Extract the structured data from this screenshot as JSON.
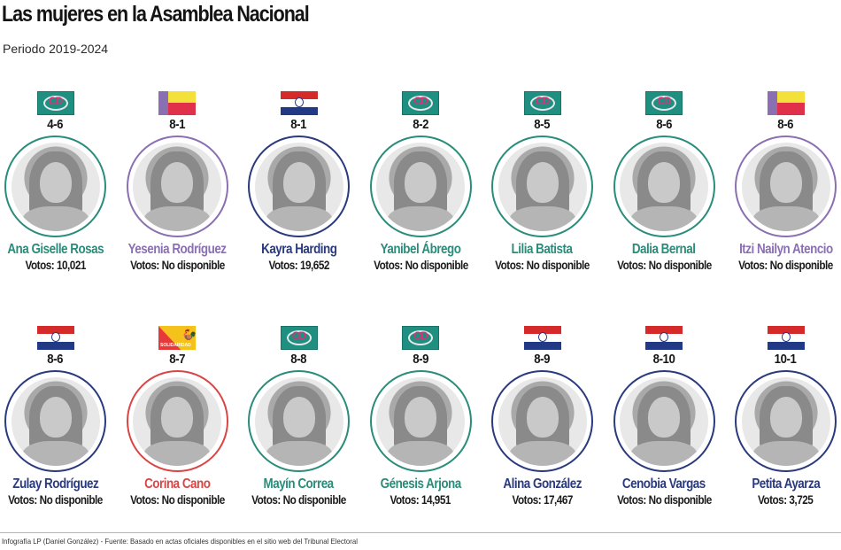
{
  "header": {
    "title": "Las mujeres en la Asamblea Nacional",
    "subtitle": "Periodo 2019-2024"
  },
  "parties": {
    "CD": {
      "label": "CD",
      "color": "#2a8c7a",
      "logo": "cd-logo-icon"
    },
    "MOLIRENA": {
      "label": "",
      "color": "#8b6fb3",
      "logo": "molirena-logo-icon"
    },
    "PRD": {
      "label": "",
      "color": "#223a86",
      "logo": "prd-logo-icon"
    },
    "SOLIDARIDAD": {
      "label": "SOLIDARIDAD",
      "color": "#d94040",
      "logo": "solidaridad-logo-icon"
    }
  },
  "deputies": [
    {
      "circuit": "4-6",
      "name": "Ana Giselle Rosas",
      "votes": "Votos: 10,021",
      "party": "CD"
    },
    {
      "circuit": "8-1",
      "name": "Yesenia Rodríguez",
      "votes": "Votos: No disponible",
      "party": "MOLIRENA"
    },
    {
      "circuit": "8-1",
      "name": "Kayra Harding",
      "votes": "Votos: 19,652",
      "party": "PRD"
    },
    {
      "circuit": "8-2",
      "name": "Yanibel Ábrego",
      "votes": "Votos: No disponible",
      "party": "CD"
    },
    {
      "circuit": "8-5",
      "name": "Lilia Batista",
      "votes": "Votos: No disponible",
      "party": "CD"
    },
    {
      "circuit": "8-6",
      "name": "Dalia Bernal",
      "votes": "Votos: No disponible",
      "party": "CD"
    },
    {
      "circuit": "8-6",
      "name": "Itzi Nailyn Atencio",
      "votes": "Votos: No disponible",
      "party": "MOLIRENA"
    },
    {
      "circuit": "8-6",
      "name": "Zulay Rodríguez",
      "votes": "Votos: No disponible",
      "party": "PRD"
    },
    {
      "circuit": "8-7",
      "name": "Corina Cano",
      "votes": "Votos: No disponible",
      "party": "SOLIDARIDAD"
    },
    {
      "circuit": "8-8",
      "name": "Mayín Correa",
      "votes": "Votos: No disponible",
      "party": "CD"
    },
    {
      "circuit": "8-9",
      "name": "Génesis Arjona",
      "votes": "Votos: 14,951",
      "party": "CD"
    },
    {
      "circuit": "8-9",
      "name": "Alina González",
      "votes": "Votos: 17,467",
      "party": "PRD"
    },
    {
      "circuit": "8-10",
      "name": "Cenobia Vargas",
      "votes": "Votos: No disponible",
      "party": "PRD"
    },
    {
      "circuit": "10-1",
      "name": "Petita Ayarza",
      "votes": "Votos: 3,725",
      "party": "PRD"
    }
  ],
  "footer": {
    "credit": "Infografía LP (Daniel González) - Fuente: Basado en actas oficiales disponibles en el sitio web del Tribunal Electoral"
  }
}
